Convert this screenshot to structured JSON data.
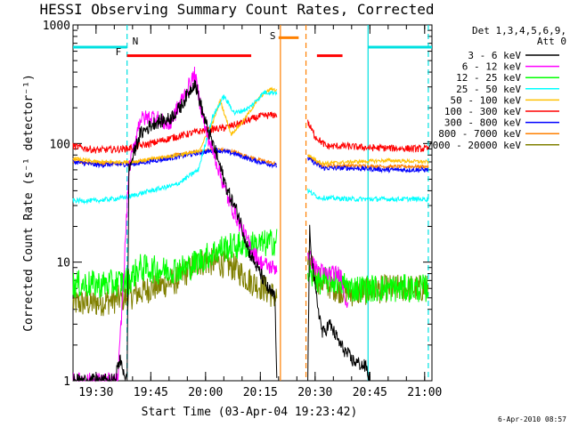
{
  "chart_data": {
    "type": "line",
    "title": "HESSI Observing Summary Count Rates, Corrected",
    "xlabel": "Start Time (03-Apr-04 19:23:42)",
    "ylabel": "Corrected Count Rate (s⁻¹ detector⁻¹)",
    "y_scale": "log",
    "ylim": [
      1,
      1000
    ],
    "xlim": [
      "19:23:42",
      "21:02:00"
    ],
    "x_ticks": [
      "19:30",
      "19:45",
      "20:00",
      "20:15",
      "20:30",
      "20:45",
      "21:00"
    ],
    "y_ticks": [
      "1",
      "10",
      "100",
      "1000"
    ],
    "footer": "6-Apr-2010 08:57",
    "legend": {
      "header": [
        "Det 1,3,4,5,6,9,",
        "Att 0"
      ],
      "placement": "right"
    },
    "data_gap": [
      "20:20:30",
      "20:27:30"
    ],
    "annotations": [
      {
        "label": "N",
        "color": "#00e0e0",
        "x": "19:38:30"
      },
      {
        "label": "F",
        "color": "#ff0000",
        "x": "19:37:30"
      },
      {
        "label": "S",
        "color": "#ff8000",
        "x": "20:20:00"
      }
    ],
    "bars": [
      {
        "name": "night",
        "color": "#00e0e0",
        "y": 650,
        "ranges": [
          [
            "19:23:42",
            "19:38:30"
          ],
          [
            "20:44:30",
            "21:02:00"
          ]
        ]
      },
      {
        "name": "flare",
        "color": "#ff0000",
        "y": 550,
        "ranges": [
          [
            "19:38:30",
            "20:12:30"
          ],
          [
            "20:30:30",
            "20:37:30"
          ]
        ]
      },
      {
        "name": "saa",
        "color": "#ff8000",
        "y": 780,
        "ranges": [
          [
            "20:20:00",
            "20:25:30"
          ]
        ]
      }
    ],
    "vlines": [
      {
        "x": "19:38:30",
        "color": "#00e0e0",
        "style": "dashed"
      },
      {
        "x": "20:44:30",
        "color": "#00e0e0",
        "style": "solid"
      },
      {
        "x": "21:01:00",
        "color": "#00e0e0",
        "style": "dashed"
      },
      {
        "x": "20:20:30",
        "color": "#ff8000",
        "style": "solid"
      },
      {
        "x": "20:27:30",
        "color": "#ff8000",
        "style": "dashed"
      }
    ],
    "series": [
      {
        "name": "3 - 6 keV",
        "color": "#000000",
        "noise": 0.06,
        "points": [
          [
            "19:23:42",
            1
          ],
          [
            "19:35:00",
            1
          ],
          [
            "19:36:30",
            1.5
          ],
          [
            "19:38:30",
            1
          ],
          [
            "19:39:00",
            60
          ],
          [
            "19:42:00",
            120
          ],
          [
            "19:46:00",
            150
          ],
          [
            "19:50:00",
            160
          ],
          [
            "19:53:00",
            200
          ],
          [
            "19:57:00",
            330
          ],
          [
            "20:00:00",
            150
          ],
          [
            "20:03:00",
            80
          ],
          [
            "20:06:00",
            40
          ],
          [
            "20:09:00",
            25
          ],
          [
            "20:12:00",
            12
          ],
          [
            "20:15:00",
            8
          ],
          [
            "20:17:00",
            6
          ],
          [
            "20:19:00",
            5
          ],
          [
            "20:19:30",
            1
          ],
          [
            "20:28:00",
            1
          ],
          [
            "20:28:30",
            18
          ],
          [
            "20:30:00",
            6
          ],
          [
            "20:32:00",
            2.5
          ],
          [
            "20:34:00",
            3
          ],
          [
            "20:37:00",
            2
          ],
          [
            "20:40:00",
            1.5
          ],
          [
            "20:44:00",
            1.3
          ],
          [
            "20:45:00",
            1
          ]
        ]
      },
      {
        "name": "6 - 12 keV",
        "color": "#ff00ff",
        "noise": 0.07,
        "points": [
          [
            "19:23:42",
            1
          ],
          [
            "19:36:00",
            1
          ],
          [
            "19:37:30",
            7
          ],
          [
            "19:39:00",
            60
          ],
          [
            "19:42:00",
            160
          ],
          [
            "19:46:00",
            170
          ],
          [
            "19:50:00",
            140
          ],
          [
            "19:53:00",
            220
          ],
          [
            "19:57:00",
            380
          ],
          [
            "20:00:00",
            130
          ],
          [
            "20:03:00",
            70
          ],
          [
            "20:06:00",
            35
          ],
          [
            "20:09:00",
            22
          ],
          [
            "20:12:00",
            14
          ],
          [
            "20:15:00",
            10
          ],
          [
            "20:18:00",
            9
          ],
          [
            "20:19:30",
            9
          ],
          [
            "20:28:00",
            12
          ],
          [
            "20:30:00",
            9
          ],
          [
            "20:33:00",
            8
          ],
          [
            "20:37:00",
            8
          ],
          [
            "20:39:00",
            4
          ]
        ]
      },
      {
        "name": "12 - 25 keV",
        "color": "#00ff00",
        "noise": 0.12,
        "points": [
          [
            "19:23:42",
            6.5
          ],
          [
            "19:33:00",
            6.5
          ],
          [
            "19:39:00",
            7
          ],
          [
            "19:42:00",
            9
          ],
          [
            "19:48:00",
            8.5
          ],
          [
            "19:55:00",
            9
          ],
          [
            "20:00:00",
            11
          ],
          [
            "20:04:00",
            13
          ],
          [
            "20:10:00",
            14
          ],
          [
            "20:15:00",
            14
          ],
          [
            "20:19:30",
            15
          ],
          [
            "20:28:00",
            8
          ],
          [
            "20:31:00",
            7
          ],
          [
            "20:36:00",
            7
          ],
          [
            "20:40:00",
            6
          ],
          [
            "20:50:00",
            6
          ],
          [
            "21:01:00",
            6
          ]
        ]
      },
      {
        "name": "25 - 50 keV",
        "color": "#00ffff",
        "noise": 0.02,
        "points": [
          [
            "19:23:42",
            33
          ],
          [
            "19:30:00",
            33
          ],
          [
            "19:38:00",
            35
          ],
          [
            "19:45:00",
            40
          ],
          [
            "19:52:00",
            45
          ],
          [
            "19:58:00",
            60
          ],
          [
            "20:02:00",
            170
          ],
          [
            "20:05:00",
            250
          ],
          [
            "20:08:00",
            180
          ],
          [
            "20:12:00",
            200
          ],
          [
            "20:16:00",
            270
          ],
          [
            "20:19:30",
            270
          ],
          [
            "20:28:00",
            40
          ],
          [
            "20:31:00",
            35
          ],
          [
            "20:40:00",
            34
          ],
          [
            "20:50:00",
            34
          ],
          [
            "21:01:00",
            34
          ]
        ]
      },
      {
        "name": "50 - 100 keV",
        "color": "#ffc000",
        "noise": 0.015,
        "points": [
          [
            "19:23:42",
            75
          ],
          [
            "19:30:00",
            70
          ],
          [
            "19:40:00",
            70
          ],
          [
            "19:50:00",
            78
          ],
          [
            "19:58:00",
            85
          ],
          [
            "20:02:00",
            150
          ],
          [
            "20:04:00",
            230
          ],
          [
            "20:07:00",
            120
          ],
          [
            "20:10:00",
            150
          ],
          [
            "20:15:00",
            250
          ],
          [
            "20:18:00",
            290
          ],
          [
            "20:19:30",
            280
          ],
          [
            "20:28:00",
            80
          ],
          [
            "20:32:00",
            68
          ],
          [
            "20:40:00",
            70
          ],
          [
            "20:50:00",
            72
          ],
          [
            "21:01:00",
            70
          ]
        ]
      },
      {
        "name": "100 - 300 keV",
        "color": "#ff0000",
        "noise": 0.03,
        "points": [
          [
            "19:23:42",
            95
          ],
          [
            "19:30:00",
            88
          ],
          [
            "19:38:00",
            90
          ],
          [
            "19:45:00",
            100
          ],
          [
            "19:50:00",
            110
          ],
          [
            "19:55:00",
            120
          ],
          [
            "20:00:00",
            130
          ],
          [
            "20:05:00",
            135
          ],
          [
            "20:10:00",
            150
          ],
          [
            "20:15:00",
            170
          ],
          [
            "20:19:30",
            175
          ],
          [
            "20:28:00",
            150
          ],
          [
            "20:30:00",
            115
          ],
          [
            "20:33:00",
            95
          ],
          [
            "20:38:00",
            95
          ],
          [
            "20:45:00",
            92
          ],
          [
            "21:01:00",
            90
          ]
        ]
      },
      {
        "name": "300 - 800 keV",
        "color": "#0000ff",
        "noise": 0.02,
        "points": [
          [
            "19:23:42",
            70
          ],
          [
            "19:30:00",
            66
          ],
          [
            "19:40:00",
            67
          ],
          [
            "19:50:00",
            75
          ],
          [
            "19:58:00",
            83
          ],
          [
            "20:03:00",
            88
          ],
          [
            "20:08:00",
            82
          ],
          [
            "20:13:00",
            72
          ],
          [
            "20:19:30",
            65
          ],
          [
            "20:28:00",
            75
          ],
          [
            "20:32:00",
            62
          ],
          [
            "20:40:00",
            62
          ],
          [
            "20:50:00",
            60
          ],
          [
            "21:01:00",
            60
          ]
        ]
      },
      {
        "name": "800 - 7000 keV",
        "color": "#ff8000",
        "noise": 0.015,
        "points": [
          [
            "19:23:42",
            72
          ],
          [
            "19:30:00",
            68
          ],
          [
            "19:40:00",
            69
          ],
          [
            "19:50:00",
            78
          ],
          [
            "19:58:00",
            86
          ],
          [
            "20:03:00",
            90
          ],
          [
            "20:08:00",
            85
          ],
          [
            "20:13:00",
            75
          ],
          [
            "20:19:30",
            67
          ],
          [
            "20:28:00",
            78
          ],
          [
            "20:32:00",
            65
          ],
          [
            "20:40:00",
            65
          ],
          [
            "20:50:00",
            64
          ],
          [
            "21:01:00",
            64
          ]
        ]
      },
      {
        "name": "7000 - 20000 keV",
        "color": "#808000",
        "noise": 0.12,
        "points": [
          [
            "19:23:42",
            4.5
          ],
          [
            "19:30:00",
            4.5
          ],
          [
            "19:38:00",
            5
          ],
          [
            "19:45:00",
            6
          ],
          [
            "19:52:00",
            7
          ],
          [
            "19:58:00",
            10
          ],
          [
            "20:03:00",
            10
          ],
          [
            "20:08:00",
            9
          ],
          [
            "20:12:00",
            7
          ],
          [
            "20:16:00",
            6
          ],
          [
            "20:19:30",
            5
          ],
          [
            "20:28:00",
            10
          ],
          [
            "20:31:00",
            7
          ],
          [
            "20:36:00",
            6
          ],
          [
            "20:40:00",
            5.5
          ],
          [
            "20:50:00",
            6
          ],
          [
            "21:01:00",
            6
          ]
        ]
      }
    ]
  }
}
